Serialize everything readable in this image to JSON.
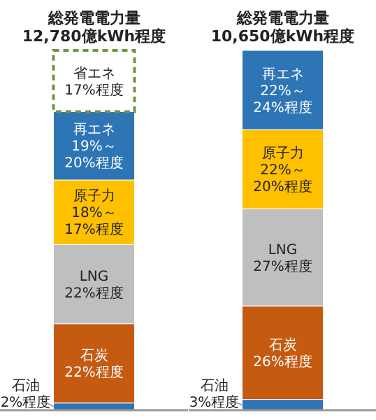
{
  "chart_data": [
    {
      "type": "bar",
      "stacked": true,
      "categories": [
        "総発電電力量\n12,780億kWh程度"
      ],
      "series": [
        {
          "name": "石油",
          "color": "#2e75b6",
          "values": [
            2
          ],
          "value_labels": [
            "2%程度"
          ]
        },
        {
          "name": "石炭",
          "color": "#c55a11",
          "values": [
            22
          ],
          "value_labels": [
            "22%程度"
          ]
        },
        {
          "name": "LNG",
          "color": "#bfbfbf",
          "values": [
            22
          ],
          "value_labels": [
            "22%程度"
          ]
        },
        {
          "name": "原子力",
          "color": "#ffc000",
          "values": [
            18
          ],
          "value_labels": [
            "18%～17%程度"
          ]
        },
        {
          "name": "再エネ",
          "color": "#2e75b6",
          "values": [
            19
          ],
          "value_labels": [
            "19%～20%程度"
          ]
        },
        {
          "name": "省エネ",
          "color": "#70963f",
          "line_style": "dashed",
          "values": [
            17
          ],
          "value_labels": [
            "17%程度"
          ]
        }
      ]
    },
    {
      "type": "bar",
      "stacked": true,
      "categories": [
        "総発電電力量\n10,650億kWh程度"
      ],
      "series": [
        {
          "name": "石油",
          "color": "#2e75b6",
          "values": [
            3
          ],
          "value_labels": [
            "3%程度"
          ]
        },
        {
          "name": "石炭",
          "color": "#c55a11",
          "values": [
            26
          ],
          "value_labels": [
            "26%程度"
          ]
        },
        {
          "name": "LNG",
          "color": "#bfbfbf",
          "values": [
            27
          ],
          "value_labels": [
            "27%程度"
          ]
        },
        {
          "name": "原子力",
          "color": "#ffc000",
          "values": [
            22
          ],
          "value_labels": [
            "22%～20%程度"
          ]
        },
        {
          "name": "再エネ",
          "color": "#2e75b6",
          "values": [
            22
          ],
          "value_labels": [
            "22%～24%程度"
          ]
        }
      ]
    }
  ]
}
